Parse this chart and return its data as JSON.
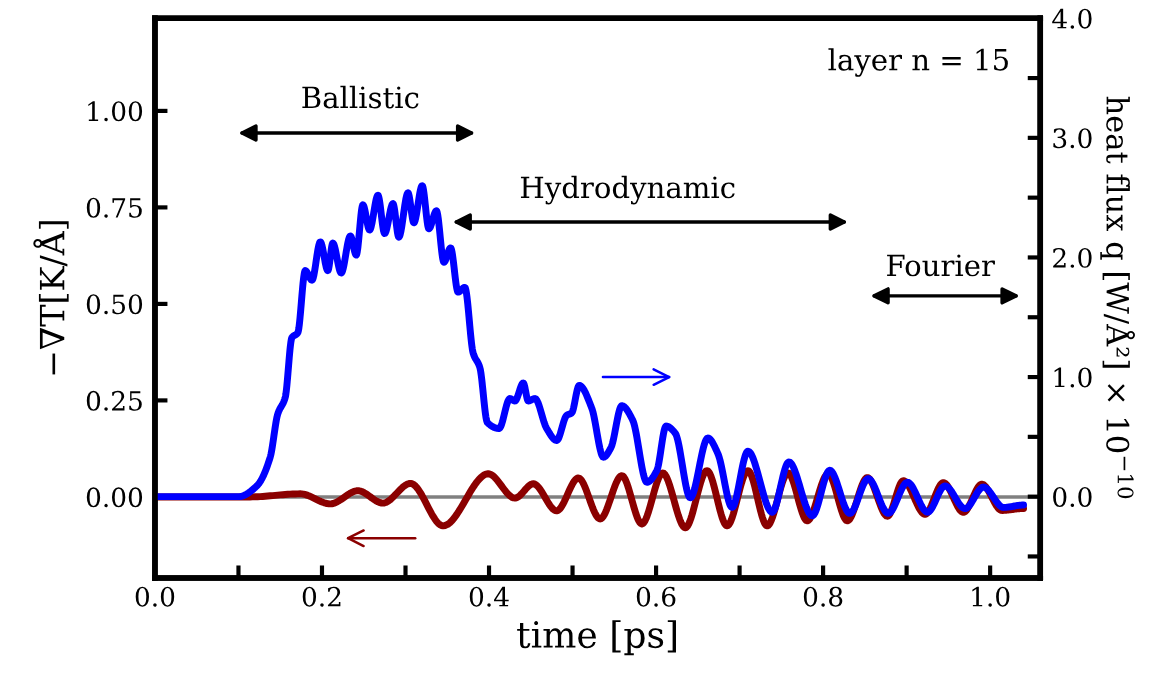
{
  "chart_data": {
    "type": "line",
    "xlabel": "time [ps]",
    "ylabel": "−∇T[K/Å]",
    "y2label": "heat flux q [W/Å²] × 10$^{−10}$",
    "xlim": [
      0,
      1.06
    ],
    "xticks": [
      {
        "value": 0,
        "label": "0.0"
      },
      {
        "value": 0.1,
        "label": null
      },
      0.2,
      {
        "value": 0.3,
        "label": null
      },
      0.4,
      {
        "value": 0.5,
        "label": null
      },
      0.6,
      {
        "value": 0.7,
        "label": null
      },
      0.8,
      {
        "value": 0.9,
        "label": null
      },
      {
        "value": 1,
        "label": "1.0"
      }
    ],
    "ylim": [
      -0.21,
      1.24
    ],
    "yticks": [
      {
        "value": 0,
        "label": "0.00"
      },
      0.25,
      {
        "value": 0.5,
        "label": "0.50"
      },
      0.75,
      {
        "value": 1,
        "label": "1.00"
      }
    ],
    "y2lim": [
      -0.68,
      4.0
    ],
    "y2ticks": [
      {
        "value": -0.5,
        "label": null
      },
      {
        "value": 0,
        "label": "0.0"
      },
      {
        "value": 0.5,
        "label": null
      },
      {
        "value": 1,
        "label": "1.0"
      },
      {
        "value": 1.5,
        "label": null
      },
      {
        "value": 2,
        "label": "2.0"
      },
      {
        "value": 2.5,
        "label": null
      },
      {
        "value": 3,
        "label": "3.0"
      },
      {
        "value": 3.5,
        "label": null
      },
      {
        "value": 4,
        "label": "4.0"
      }
    ],
    "legend": false,
    "ref_lines": [
      {
        "axis": "y",
        "value": 0,
        "color": "#808080"
      }
    ],
    "annotations": [
      "Ballistic",
      "Hydrodynamic",
      "Fourier",
      "layer n = 15"
    ],
    "series": [
      {
        "color": "#8b0000",
        "axis": "y",
        "x": [
          0,
          0.1,
          0.114,
          0.174,
          0.21,
          0.243,
          0.273,
          0.306,
          0.345,
          0.399,
          0.431,
          0.453,
          0.481,
          0.507,
          0.533,
          0.559,
          0.583,
          0.608,
          0.635,
          0.661,
          0.685,
          0.71,
          0.733,
          0.758,
          0.781,
          0.806,
          0.829,
          0.853,
          0.877,
          0.896,
          0.922,
          0.944,
          0.968,
          0.99,
          1.014,
          1.04
        ],
        "values": [
          0,
          0,
          0,
          0.008,
          -0.018,
          0.016,
          -0.016,
          0.035,
          -0.075,
          0.06,
          -0.003,
          0.034,
          -0.036,
          0.049,
          -0.057,
          0.055,
          -0.07,
          0.062,
          -0.08,
          0.068,
          -0.075,
          0.068,
          -0.075,
          0.062,
          -0.062,
          0.06,
          -0.062,
          0.05,
          -0.05,
          0.042,
          -0.045,
          0.037,
          -0.04,
          0.033,
          -0.035,
          -0.03
        ]
      },
      {
        "color": "#0000ff",
        "axis": "y2",
        "x": [
          0,
          0.1,
          0.122,
          0.138,
          0.147,
          0.156,
          0.164,
          0.171,
          0.18,
          0.188,
          0.198,
          0.207,
          0.213,
          0.223,
          0.234,
          0.241,
          0.249,
          0.257,
          0.267,
          0.275,
          0.285,
          0.292,
          0.303,
          0.31,
          0.32,
          0.328,
          0.337,
          0.346,
          0.354,
          0.363,
          0.371,
          0.381,
          0.389,
          0.398,
          0.412,
          0.425,
          0.431,
          0.441,
          0.447,
          0.455,
          0.469,
          0.481,
          0.493,
          0.499,
          0.508,
          0.523,
          0.537,
          0.546,
          0.559,
          0.572,
          0.589,
          0.601,
          0.612,
          0.623,
          0.641,
          0.662,
          0.674,
          0.691,
          0.71,
          0.739,
          0.759,
          0.787,
          0.808,
          0.832,
          0.854,
          0.878,
          0.901,
          0.925,
          0.946,
          0.97,
          0.992,
          1.016,
          1.04
        ],
        "values": [
          0,
          0,
          0.09,
          0.33,
          0.69,
          0.83,
          1.33,
          1.37,
          1.89,
          1.81,
          2.13,
          1.89,
          2.12,
          1.87,
          2.18,
          2.02,
          2.44,
          2.23,
          2.52,
          2.2,
          2.45,
          2.17,
          2.54,
          2.29,
          2.6,
          2.24,
          2.39,
          1.96,
          2.08,
          1.71,
          1.75,
          1.2,
          1.08,
          0.62,
          0.57,
          0.82,
          0.8,
          0.95,
          0.8,
          0.82,
          0.57,
          0.47,
          0.68,
          0.7,
          0.93,
          0.74,
          0.33,
          0.41,
          0.76,
          0.64,
          0.12,
          0.22,
          0.59,
          0.53,
          -0.01,
          0.49,
          0.36,
          -0.09,
          0.38,
          -0.13,
          0.29,
          -0.16,
          0.22,
          -0.14,
          0.15,
          -0.14,
          0.12,
          -0.13,
          0.09,
          -0.1,
          0.08,
          -0.09,
          -0.07
        ]
      }
    ]
  }
}
